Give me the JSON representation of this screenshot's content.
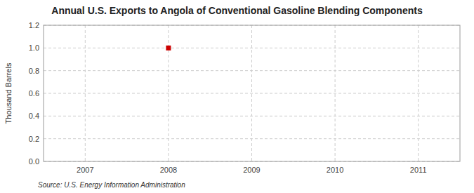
{
  "chart_data": {
    "type": "scatter",
    "title": "Annual U.S. Exports to Angola of Conventional Gasoline Blending Components",
    "ylabel": "Thousand Barrels",
    "source": "Source: U.S. Energy Information Administration",
    "x": [
      2008
    ],
    "values": [
      1.0
    ],
    "color": "#CC0000",
    "marker": "square",
    "xlim": [
      2006.5,
      2011.5
    ],
    "xticks": [
      2007,
      2008,
      2009,
      2010,
      2011
    ],
    "ylim": [
      0.0,
      1.2
    ],
    "yticks": [
      {
        "value": 0.0,
        "label": "0.0"
      },
      0.2,
      0.4,
      0.6,
      0.8,
      {
        "value": 1.0,
        "label": "1.0"
      },
      1.2
    ],
    "grid": true
  }
}
